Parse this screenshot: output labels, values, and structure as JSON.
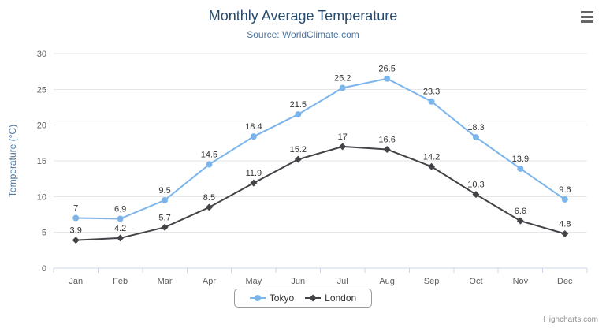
{
  "credits": "Highcharts.com",
  "icons": {
    "context_menu": "hamburger-menu-icon"
  },
  "chart_data": {
    "type": "line",
    "title": "Monthly Average Temperature",
    "subtitle": "Source: WorldClimate.com",
    "xlabel": "",
    "ylabel": "Temperature (°C)",
    "ylim": [
      0,
      30
    ],
    "ytick_step": 5,
    "grid": true,
    "legend_position": "bottom",
    "categories": [
      "Jan",
      "Feb",
      "Mar",
      "Apr",
      "May",
      "Jun",
      "Jul",
      "Aug",
      "Sep",
      "Oct",
      "Nov",
      "Dec"
    ],
    "series": [
      {
        "name": "Tokyo",
        "color": "#7cb5ec",
        "marker": "circle",
        "values": [
          7,
          6.9,
          9.5,
          14.5,
          18.4,
          21.5,
          25.2,
          26.5,
          23.3,
          18.3,
          13.9,
          9.6
        ]
      },
      {
        "name": "London",
        "color": "#434348",
        "marker": "diamond",
        "values": [
          3.9,
          4.2,
          5.7,
          8.5,
          11.9,
          15.2,
          17,
          16.6,
          14.2,
          10.3,
          6.6,
          4.8
        ]
      }
    ]
  }
}
